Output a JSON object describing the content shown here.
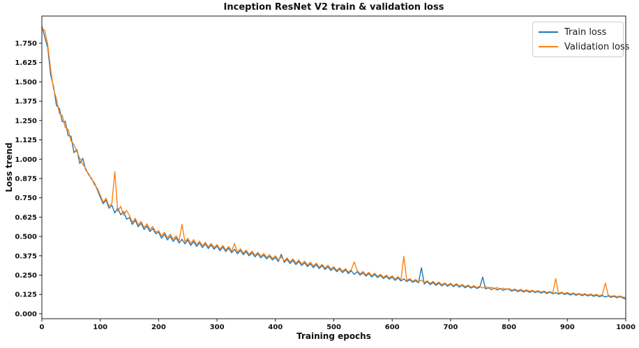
{
  "figure": {
    "background": "#ffffff"
  },
  "chart_data": {
    "type": "line",
    "title": "Inception ResNet V2 train & validation loss",
    "xlabel": "Training epochs",
    "ylabel": "Loss trend",
    "xlim": [
      0,
      1000
    ],
    "ylim": [
      -0.032,
      1.926
    ],
    "grid": false,
    "frame_color": "#1a1a1a",
    "text_color": "#111111",
    "xticks": [
      0,
      100,
      200,
      300,
      400,
      500,
      600,
      700,
      800,
      900,
      1000
    ],
    "xtick_labels": [
      "0",
      "100",
      "200",
      "300",
      "400",
      "500",
      "600",
      "700",
      "800",
      "900",
      "1000"
    ],
    "ytick_values": [
      0.0,
      0.125,
      0.25,
      0.375,
      0.5,
      0.625,
      0.75,
      0.875,
      1.0,
      1.125,
      1.25,
      1.375,
      1.5,
      1.625,
      1.75
    ],
    "ytick_labels": [
      "0.000",
      "0.125",
      "0.250",
      "0.375",
      "0.500",
      "0.625",
      "0.750",
      "0.875",
      "1.000",
      "1.125",
      "1.250",
      "1.375",
      "1.500",
      "1.625",
      "1.750"
    ],
    "legend": {
      "position": "upper right"
    },
    "x": [
      0,
      5,
      10,
      15,
      20,
      25,
      30,
      35,
      40,
      45,
      50,
      55,
      60,
      65,
      70,
      75,
      80,
      85,
      90,
      95,
      100,
      105,
      110,
      115,
      120,
      125,
      130,
      135,
      140,
      145,
      150,
      155,
      160,
      165,
      170,
      175,
      180,
      185,
      190,
      195,
      200,
      205,
      210,
      215,
      220,
      225,
      230,
      235,
      240,
      245,
      250,
      255,
      260,
      265,
      270,
      275,
      280,
      285,
      290,
      295,
      300,
      305,
      310,
      315,
      320,
      325,
      330,
      335,
      340,
      345,
      350,
      355,
      360,
      365,
      370,
      375,
      380,
      385,
      390,
      395,
      400,
      405,
      410,
      415,
      420,
      425,
      430,
      435,
      440,
      445,
      450,
      455,
      460,
      465,
      470,
      475,
      480,
      485,
      490,
      495,
      500,
      505,
      510,
      515,
      520,
      525,
      530,
      535,
      540,
      545,
      550,
      555,
      560,
      565,
      570,
      575,
      580,
      585,
      590,
      595,
      600,
      605,
      610,
      615,
      620,
      625,
      630,
      635,
      640,
      645,
      650,
      655,
      660,
      665,
      670,
      675,
      680,
      685,
      690,
      695,
      700,
      705,
      710,
      715,
      720,
      725,
      730,
      735,
      740,
      745,
      750,
      755,
      760,
      765,
      770,
      775,
      780,
      785,
      790,
      795,
      800,
      805,
      810,
      815,
      820,
      825,
      830,
      835,
      840,
      845,
      850,
      855,
      860,
      865,
      870,
      875,
      880,
      885,
      890,
      895,
      900,
      905,
      910,
      915,
      920,
      925,
      930,
      935,
      940,
      945,
      950,
      955,
      960,
      965,
      970,
      975,
      980,
      985,
      990,
      995,
      1000
    ],
    "series": [
      {
        "name": "Train loss",
        "color": "#1f77b4",
        "values": [
          1.862,
          1.788,
          1.722,
          1.545,
          1.472,
          1.348,
          1.328,
          1.242,
          1.245,
          1.152,
          1.148,
          1.042,
          1.062,
          0.972,
          1.005,
          0.932,
          0.905,
          0.872,
          0.846,
          0.802,
          0.755,
          0.712,
          0.735,
          0.682,
          0.702,
          0.652,
          0.685,
          0.64,
          0.662,
          0.612,
          0.622,
          0.578,
          0.605,
          0.562,
          0.585,
          0.545,
          0.568,
          0.532,
          0.552,
          0.518,
          0.528,
          0.488,
          0.515,
          0.478,
          0.502,
          0.468,
          0.492,
          0.458,
          0.482,
          0.452,
          0.478,
          0.442,
          0.468,
          0.435,
          0.458,
          0.428,
          0.452,
          0.422,
          0.445,
          0.418,
          0.438,
          0.408,
          0.432,
          0.402,
          0.425,
          0.395,
          0.418,
          0.388,
          0.41,
          0.382,
          0.402,
          0.375,
          0.395,
          0.368,
          0.388,
          0.362,
          0.38,
          0.355,
          0.372,
          0.348,
          0.365,
          0.338,
          0.385,
          0.332,
          0.352,
          0.325,
          0.345,
          0.318,
          0.338,
          0.312,
          0.33,
          0.305,
          0.324,
          0.298,
          0.318,
          0.292,
          0.312,
          0.286,
          0.305,
          0.28,
          0.295,
          0.272,
          0.29,
          0.266,
          0.284,
          0.26,
          0.278,
          0.255,
          0.272,
          0.25,
          0.265,
          0.244,
          0.26,
          0.238,
          0.254,
          0.234,
          0.248,
          0.228,
          0.242,
          0.224,
          0.238,
          0.216,
          0.232,
          0.212,
          0.226,
          0.208,
          0.22,
          0.204,
          0.214,
          0.2,
          0.298,
          0.192,
          0.208,
          0.188,
          0.202,
          0.184,
          0.198,
          0.18,
          0.194,
          0.178,
          0.192,
          0.175,
          0.188,
          0.172,
          0.184,
          0.168,
          0.18,
          0.166,
          0.176,
          0.164,
          0.172,
          0.238,
          0.16,
          0.17,
          0.156,
          0.167,
          0.154,
          0.164,
          0.151,
          0.161,
          0.158,
          0.146,
          0.155,
          0.143,
          0.152,
          0.141,
          0.15,
          0.139,
          0.147,
          0.137,
          0.145,
          0.133,
          0.142,
          0.131,
          0.14,
          0.129,
          0.137,
          0.127,
          0.135,
          0.125,
          0.132,
          0.121,
          0.13,
          0.119,
          0.128,
          0.117,
          0.125,
          0.115,
          0.123,
          0.113,
          0.12,
          0.11,
          0.118,
          0.108,
          0.116,
          0.106,
          0.113,
          0.104,
          0.111,
          0.102,
          0.095
        ]
      },
      {
        "name": "Validation loss",
        "color": "#ff7f0e",
        "values": [
          1.848,
          1.832,
          1.742,
          1.582,
          1.455,
          1.392,
          1.295,
          1.282,
          1.205,
          1.192,
          1.118,
          1.095,
          1.048,
          1.005,
          0.968,
          0.942,
          0.898,
          0.878,
          0.835,
          0.812,
          0.768,
          0.722,
          0.748,
          0.695,
          0.715,
          0.92,
          0.662,
          0.695,
          0.638,
          0.668,
          0.635,
          0.592,
          0.618,
          0.575,
          0.598,
          0.558,
          0.582,
          0.545,
          0.565,
          0.528,
          0.538,
          0.502,
          0.528,
          0.492,
          0.515,
          0.482,
          0.505,
          0.472,
          0.578,
          0.465,
          0.488,
          0.455,
          0.48,
          0.448,
          0.47,
          0.44,
          0.462,
          0.432,
          0.455,
          0.428,
          0.448,
          0.418,
          0.442,
          0.412,
          0.435,
          0.405,
          0.455,
          0.398,
          0.42,
          0.392,
          0.412,
          0.385,
          0.405,
          0.378,
          0.398,
          0.372,
          0.39,
          0.365,
          0.382,
          0.358,
          0.375,
          0.348,
          0.368,
          0.342,
          0.362,
          0.335,
          0.355,
          0.328,
          0.348,
          0.322,
          0.34,
          0.315,
          0.334,
          0.308,
          0.328,
          0.302,
          0.32,
          0.296,
          0.314,
          0.29,
          0.305,
          0.28,
          0.298,
          0.275,
          0.292,
          0.27,
          0.286,
          0.335,
          0.28,
          0.258,
          0.274,
          0.252,
          0.268,
          0.246,
          0.262,
          0.242,
          0.256,
          0.236,
          0.25,
          0.232,
          0.246,
          0.224,
          0.24,
          0.22,
          0.372,
          0.215,
          0.228,
          0.21,
          0.222,
          0.206,
          0.218,
          0.2,
          0.214,
          0.196,
          0.21,
          0.192,
          0.205,
          0.188,
          0.2,
          0.185,
          0.198,
          0.182,
          0.195,
          0.178,
          0.19,
          0.175,
          0.186,
          0.172,
          0.182,
          0.169,
          0.179,
          0.166,
          0.176,
          0.163,
          0.172,
          0.161,
          0.169,
          0.158,
          0.166,
          0.156,
          0.163,
          0.152,
          0.16,
          0.15,
          0.158,
          0.147,
          0.155,
          0.145,
          0.152,
          0.142,
          0.15,
          0.139,
          0.147,
          0.137,
          0.144,
          0.135,
          0.228,
          0.132,
          0.14,
          0.13,
          0.138,
          0.127,
          0.135,
          0.125,
          0.132,
          0.123,
          0.13,
          0.121,
          0.128,
          0.119,
          0.126,
          0.116,
          0.124,
          0.198,
          0.121,
          0.112,
          0.118,
          0.11,
          0.115,
          0.108,
          0.105
        ]
      }
    ]
  }
}
